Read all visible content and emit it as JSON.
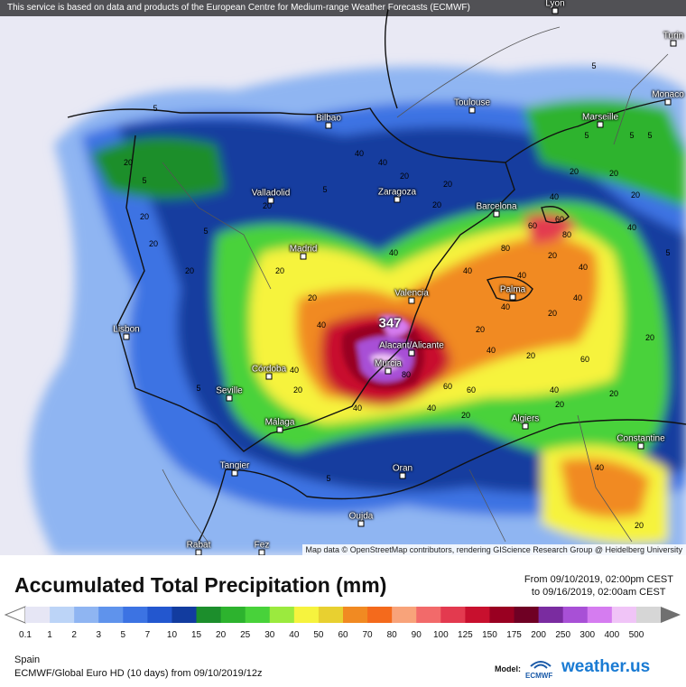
{
  "banner": "This service is based on data and products of the European Centre for Medium-range Weather Forecasts (ECMWF)",
  "credit": "Map data © OpenStreetMap contributors, rendering GIScience Research Group @ Heidelberg University",
  "title": "Accumulated Total Precipitation (mm)",
  "period_from": "From 09/10/2019, 02:00pm CEST",
  "period_to": "to 09/16/2019, 02:00am CEST",
  "region": "Spain",
  "model": "ECMWF/Global Euro HD (10 days) from 09/10/2019/12z",
  "model_label": "Model:",
  "model_org": "ECMWF",
  "brand": "weather.us",
  "max_value": "347",
  "legend": {
    "ticks": [
      "0.1",
      "1",
      "2",
      "3",
      "5",
      "7",
      "10",
      "15",
      "20",
      "25",
      "30",
      "40",
      "50",
      "60",
      "70",
      "80",
      "90",
      "100",
      "125",
      "150",
      "175",
      "200",
      "250",
      "300",
      "400",
      "500"
    ],
    "colors": [
      "#e6e6f5",
      "#bcd4f7",
      "#8fb5f2",
      "#5f93ec",
      "#3c73e3",
      "#2357cf",
      "#123c9f",
      "#1c8e2c",
      "#2db32e",
      "#48d23a",
      "#9bea3e",
      "#f6f33e",
      "#e8d030",
      "#f18a22",
      "#f46a1c",
      "#f8a37a",
      "#f26a6a",
      "#e33a4f",
      "#c8102e",
      "#990021",
      "#6f0024",
      "#7a2ca0",
      "#a850d6",
      "#d57cf0",
      "#f0c4f7",
      "#d6d6d6"
    ]
  },
  "cities": {
    "bilbao": "Bilbao",
    "toulouse": "Toulouse",
    "marseille": "Marseille",
    "monaco": "Monaco",
    "turin": "Turin",
    "lyon": "Lyon",
    "valladolid": "Valladolid",
    "zaragoza": "Zaragoza",
    "barcelona": "Barcelona",
    "madrid": "Madrid",
    "valencia": "Valencia",
    "palma": "Palma",
    "lisbon": "Lisbon",
    "alicante": "Alacant/Alicante",
    "murcia": "Murcia",
    "cordoba": "Córdoba",
    "seville": "Seville",
    "malaga": "Málaga",
    "algiers": "Algiers",
    "constantine": "Constantine",
    "tangier": "Tangier",
    "oran": "Oran",
    "oujda": "Oujda",
    "rabat": "Rabat",
    "fez": "Fez"
  },
  "contour_labels": [
    "5",
    "5",
    "20",
    "5",
    "20",
    "20",
    "20",
    "5",
    "20",
    "40",
    "40",
    "20",
    "20",
    "40",
    "20",
    "5",
    "20",
    "20",
    "5",
    "40",
    "60",
    "60",
    "80",
    "40",
    "40",
    "20",
    "40",
    "20",
    "40",
    "20",
    "20",
    "40",
    "40",
    "20",
    "40",
    "60",
    "40",
    "20",
    "40",
    "60",
    "80",
    "20",
    "5",
    "20",
    "20",
    "5",
    "5",
    "5",
    "40",
    "20",
    "20",
    "20",
    "40",
    "60",
    "80",
    "40",
    "40",
    "20",
    "5"
  ]
}
